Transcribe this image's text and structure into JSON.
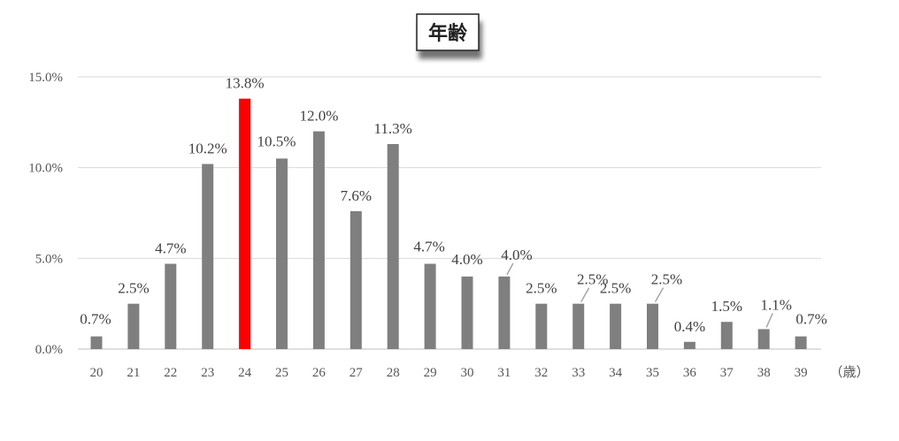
{
  "chart_data": {
    "type": "bar",
    "title": "年齢",
    "x_unit": "（歳）",
    "categories": [
      "20",
      "21",
      "22",
      "23",
      "24",
      "25",
      "26",
      "27",
      "28",
      "29",
      "30",
      "31",
      "32",
      "33",
      "34",
      "35",
      "36",
      "37",
      "38",
      "39"
    ],
    "values": [
      0.7,
      2.5,
      4.7,
      10.2,
      13.8,
      10.5,
      12.0,
      7.6,
      11.3,
      4.7,
      4.0,
      4.0,
      2.5,
      2.5,
      2.5,
      2.5,
      0.4,
      1.5,
      1.1,
      0.7
    ],
    "data_labels": [
      "0.7%",
      "2.5%",
      "4.7%",
      "10.2%",
      "13.8%",
      "10.5%",
      "12.0%",
      "7.6%",
      "11.3%",
      "4.7%",
      "4.0%",
      "4.0%",
      "2.5%",
      "2.5%",
      "2.5%",
      "2.5%",
      "0.4%",
      "1.5%",
      "1.1%",
      "0.7%"
    ],
    "y_ticks": [
      0,
      5,
      10,
      15
    ],
    "y_tick_labels": [
      "0.0%",
      "5.0%",
      "10.0%",
      "15.0%"
    ],
    "ylim": [
      0,
      15
    ],
    "grid": true,
    "legend": "none",
    "colors": {
      "bar": "#7f7f7f",
      "highlight": "#ff0000",
      "grid": "#d9d9d9"
    },
    "highlight_category": "24"
  }
}
